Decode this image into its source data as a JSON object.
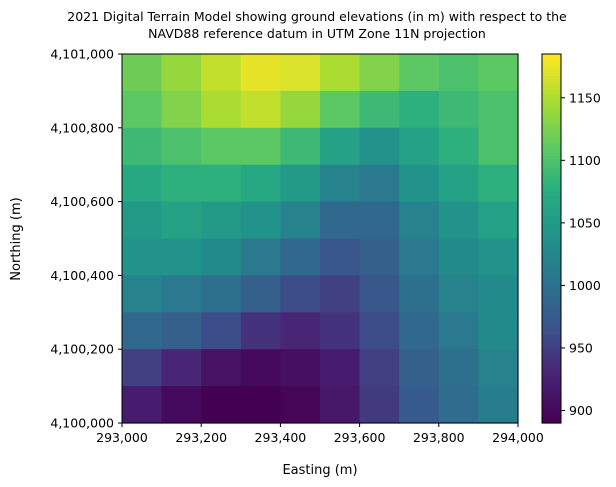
{
  "chart_data": {
    "type": "heatmap",
    "title_line1": "2021 Digital Terrain Model showing ground elevations (in m) with respect to the",
    "title_line2": "NAVD88 reference datum in UTM Zone 11N projection",
    "xlabel": "Easting (m)",
    "ylabel": "Northing (m)",
    "xlim": [
      293000,
      294000
    ],
    "ylim": [
      4100000,
      4101000
    ],
    "xticks": [
      {
        "value": 293000,
        "label": "293,000"
      },
      {
        "value": 293200,
        "label": "293,200"
      },
      {
        "value": 293400,
        "label": "293,400"
      },
      {
        "value": 293600,
        "label": "293,600"
      },
      {
        "value": 293800,
        "label": "293,800"
      },
      {
        "value": 294000,
        "label": "294,000"
      }
    ],
    "yticks": [
      {
        "value": 4100000,
        "label": "4,100,000"
      },
      {
        "value": 4100200,
        "label": "4,100,200"
      },
      {
        "value": 4100400,
        "label": "4,100,400"
      },
      {
        "value": 4100600,
        "label": "4,100,600"
      },
      {
        "value": 4100800,
        "label": "4,100,800"
      },
      {
        "value": 4101000,
        "label": "4,101,000"
      }
    ],
    "colormap": "viridis",
    "colorbar": {
      "range": [
        890,
        1185
      ],
      "ticks": [
        {
          "value": 900,
          "label": "900"
        },
        {
          "value": 950,
          "label": "950"
        },
        {
          "value": 1000,
          "label": "1000"
        },
        {
          "value": 1050,
          "label": "1050"
        },
        {
          "value": 1100,
          "label": "1100"
        },
        {
          "value": 1150,
          "label": "1150"
        }
      ]
    },
    "elevation_grid_note_rows_north_to_south": [
      [
        1120,
        1140,
        1160,
        1175,
        1170,
        1150,
        1130,
        1110,
        1100,
        1110
      ],
      [
        1110,
        1130,
        1150,
        1160,
        1140,
        1110,
        1090,
        1080,
        1090,
        1100
      ],
      [
        1090,
        1100,
        1110,
        1110,
        1090,
        1060,
        1040,
        1060,
        1080,
        1100
      ],
      [
        1070,
        1080,
        1080,
        1070,
        1050,
        1020,
        1010,
        1040,
        1060,
        1080
      ],
      [
        1050,
        1060,
        1050,
        1040,
        1020,
        990,
        990,
        1020,
        1040,
        1060
      ],
      [
        1040,
        1040,
        1030,
        1010,
        990,
        970,
        980,
        1010,
        1030,
        1040
      ],
      [
        1020,
        1010,
        1000,
        980,
        960,
        950,
        970,
        1000,
        1020,
        1030
      ],
      [
        990,
        980,
        960,
        940,
        930,
        940,
        960,
        990,
        1010,
        1030
      ],
      [
        950,
        930,
        910,
        900,
        905,
        920,
        950,
        980,
        1000,
        1020
      ],
      [
        920,
        900,
        890,
        890,
        895,
        915,
        945,
        975,
        995,
        1015
      ]
    ]
  }
}
